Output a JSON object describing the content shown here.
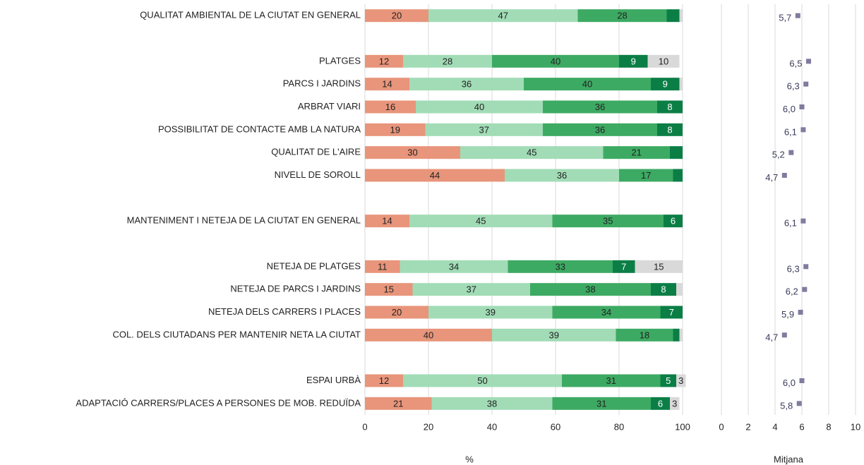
{
  "chart_data": [
    {
      "type": "bar",
      "orientation": "horizontal",
      "stacked": true,
      "grid": true,
      "xlabel": "%",
      "categories": [
        "QUALITAT AMBIENTAL DE LA CIUTAT EN GENERAL",
        null,
        "PLATGES",
        "PARCS I JARDINS",
        "ARBRAT VIARI",
        "POSSIBILITAT DE CONTACTE AMB LA NATURA",
        "QUALITAT DE L'AIRE",
        "NIVELL DE SOROLL",
        null,
        "MANTENIMENT I NETEJA DE LA CIUTAT EN GENERAL",
        null,
        "NETEJA DE PLATGES",
        "NETEJA DE PARCS I JARDINS",
        "NETEJA DELS CARRERS I PLACES",
        "COL. DELS CIUTADANS PER MANTENIR NETA LA CIUTAT",
        null,
        "ESPAI URBÀ",
        "ADAPTACIÓ CARRERS/PLACES A PERSONES DE MOB. REDUÏDA"
      ],
      "series": [
        {
          "color": "#e8957b",
          "label_color": "#222222",
          "values": [
            20,
            null,
            12,
            14,
            16,
            19,
            30,
            44,
            null,
            14,
            null,
            11,
            15,
            20,
            40,
            null,
            12,
            21
          ],
          "value_labels": [
            "20",
            null,
            "12",
            "14",
            "16",
            "19",
            "30",
            "44",
            null,
            "14",
            null,
            "11",
            "15",
            "20",
            "40",
            null,
            "12",
            "21"
          ]
        },
        {
          "color": "#a1dcb6",
          "label_color": "#222222",
          "values": [
            47,
            null,
            28,
            36,
            40,
            37,
            45,
            36,
            null,
            45,
            null,
            34,
            37,
            39,
            39,
            null,
            50,
            38
          ],
          "value_labels": [
            "47",
            null,
            "28",
            "36",
            "40",
            "37",
            "45",
            "36",
            null,
            "45",
            null,
            "34",
            "37",
            "39",
            "39",
            null,
            "50",
            "38"
          ]
        },
        {
          "color": "#3daa63",
          "label_color": "#222222",
          "values": [
            28,
            null,
            40,
            40,
            36,
            36,
            21,
            17,
            null,
            35,
            null,
            33,
            38,
            34,
            18,
            null,
            31,
            31
          ],
          "value_labels": [
            "28",
            null,
            "40",
            "40",
            "36",
            "36",
            "21",
            "17",
            null,
            "35",
            null,
            "33",
            "38",
            "34",
            "18",
            null,
            "31",
            "31"
          ]
        },
        {
          "color": "#0b7e46",
          "label_color": "#ffffff",
          "values": [
            4,
            null,
            9,
            9,
            8,
            8,
            4,
            3,
            null,
            6,
            null,
            7,
            8,
            7,
            2,
            null,
            5,
            6
          ],
          "value_labels": [
            null,
            null,
            "9",
            "9",
            "8",
            "8",
            null,
            null,
            null,
            "6",
            null,
            "7",
            "8",
            "7",
            null,
            null,
            "5",
            "6"
          ]
        },
        {
          "color": "#d9d9d9",
          "label_color": "#222222",
          "values": [
            1,
            null,
            10,
            1,
            null,
            null,
            null,
            null,
            null,
            null,
            null,
            15,
            2,
            null,
            1,
            null,
            3,
            3
          ],
          "value_labels": [
            null,
            null,
            "10",
            null,
            null,
            null,
            null,
            null,
            null,
            null,
            null,
            "15",
            null,
            null,
            null,
            null,
            "3",
            "3"
          ]
        }
      ],
      "xlim": [
        0,
        100
      ],
      "xticks": [
        0,
        20,
        40,
        60,
        80,
        100
      ]
    },
    {
      "type": "dot",
      "grid": true,
      "color": "#807b9f",
      "xlabel": "Mitjana",
      "values": [
        5.7,
        null,
        6.5,
        6.3,
        6.0,
        6.1,
        5.2,
        4.7,
        null,
        6.1,
        null,
        6.3,
        6.2,
        5.9,
        4.7,
        null,
        6.0,
        5.8
      ],
      "value_labels": [
        "5,7",
        null,
        "6,5",
        "6,3",
        "6,0",
        "6,1",
        "5,2",
        "4,7",
        null,
        "6,1",
        null,
        "6,3",
        "6,2",
        "5,9",
        "4,7",
        null,
        "6,0",
        "5,8"
      ],
      "xlim": [
        0,
        10
      ],
      "xticks": [
        0,
        2,
        4,
        6,
        8,
        10
      ]
    }
  ]
}
